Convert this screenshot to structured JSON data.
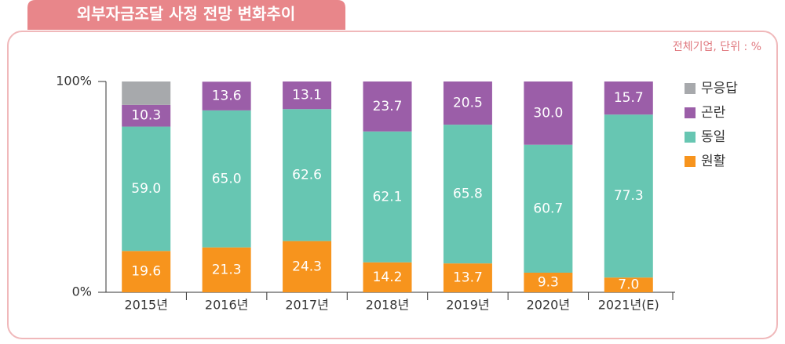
{
  "chart_data": {
    "type": "stacked-bar",
    "title": "외부자금조달 사정 전망 변화추이",
    "subtitle": "전체기업, 단위 : %",
    "categories": [
      "2015년",
      "2016년",
      "2017년",
      "2018년",
      "2019년",
      "2020년",
      "2021년(E)"
    ],
    "series": [
      {
        "name": "원활",
        "color": "#f7941d",
        "values": [
          19.6,
          21.3,
          24.3,
          14.2,
          13.7,
          9.3,
          7.0
        ],
        "value_labels": [
          "19.6",
          "21.3",
          "24.3",
          "14.2",
          "13.7",
          "9.3",
          "7.0"
        ]
      },
      {
        "name": "동일",
        "color": "#67c6b2",
        "values": [
          59.0,
          65.0,
          62.6,
          62.1,
          65.8,
          60.7,
          77.3
        ],
        "value_labels": [
          "59.0",
          "65.0",
          "62.6",
          "62.1",
          "65.8",
          "60.7",
          "77.3"
        ]
      },
      {
        "name": "곤란",
        "color": "#9b5ea8",
        "values": [
          10.3,
          13.6,
          13.1,
          23.7,
          20.5,
          30.0,
          15.7
        ],
        "value_labels": [
          "10.3",
          "13.6",
          "13.1",
          "23.7",
          "20.5",
          "30.0",
          "15.7"
        ]
      },
      {
        "name": "무응답",
        "color": "#a7a9ac",
        "values": [
          11.1,
          null,
          null,
          null,
          null,
          null,
          null
        ]
      }
    ],
    "ylim": [
      0,
      100
    ],
    "yticks": [
      {
        "value": 0,
        "label": "0%"
      },
      {
        "value": 100,
        "label": "100%"
      }
    ]
  }
}
